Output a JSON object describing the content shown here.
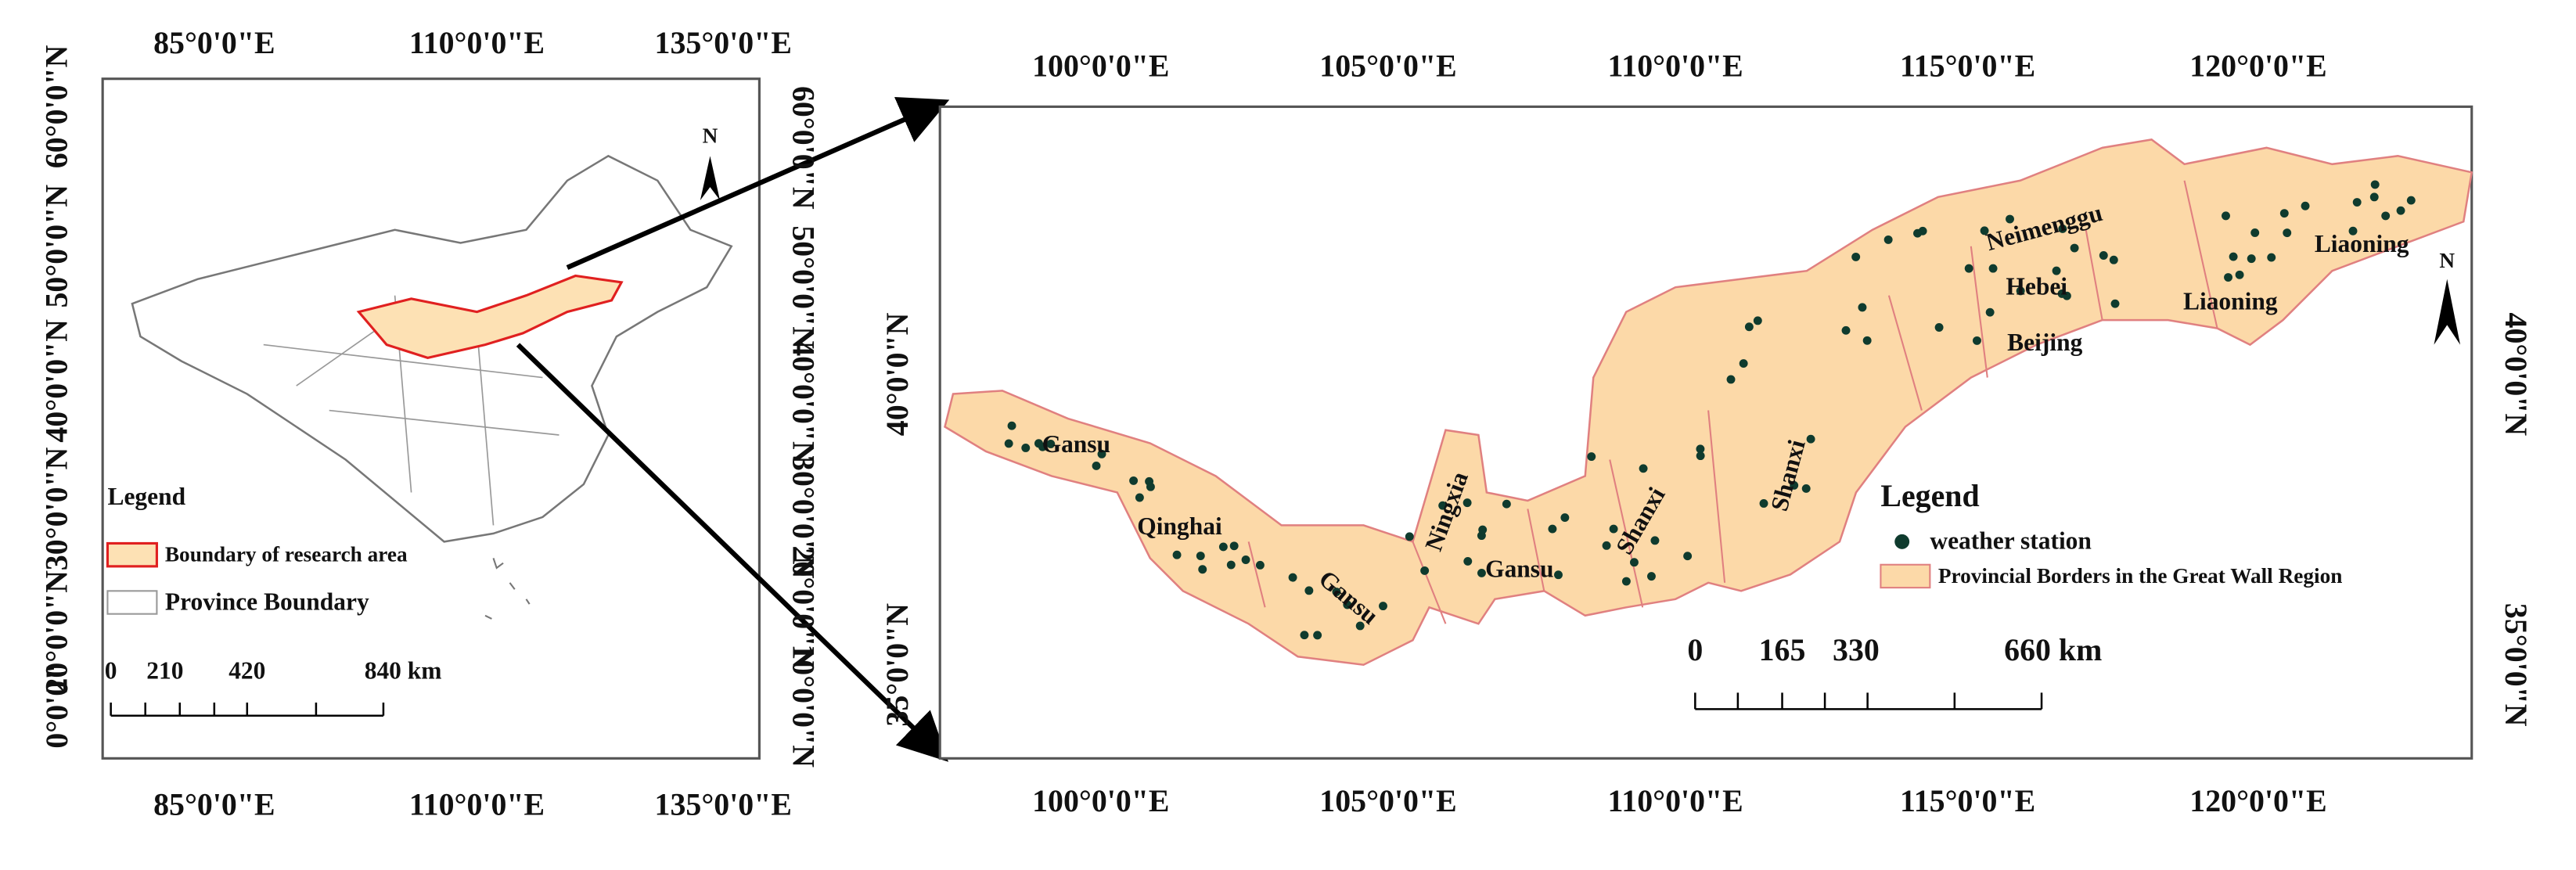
{
  "overview_map": {
    "top_labels": [
      "85°0'0\"E",
      "110°0'0\"E",
      "135°0'0\"E"
    ],
    "bottom_labels": [
      "85°0'0\"E",
      "110°0'0\"E",
      "135°0'0\"E"
    ],
    "left_labels": [
      "60°0'0\"N",
      "50°0'0\"N",
      "40°0'0\"N",
      "30°0'0\"N",
      "20°0'0\"N",
      "10°0'0\"N",
      "0°0'0\""
    ],
    "right_labels": [
      "60°0'0\"N",
      "50°0'0\"N",
      "40°0'0\"N",
      "30°0'0\"N",
      "20°0'0\"N",
      "10°0'0\"N"
    ],
    "north": "N",
    "legend": {
      "title": "Legend",
      "items": [
        "Boundary of research area",
        "Province Boundary"
      ]
    },
    "scale_bar": [
      "0",
      "210",
      "420",
      "840 km"
    ]
  },
  "detail_map": {
    "top_labels": [
      "100°0'0\"E",
      "105°0'0\"E",
      "110°0'0\"E",
      "115°0'0\"E",
      "120°0'0\"E"
    ],
    "bottom_labels": [
      "100°0'0\"E",
      "105°0'0\"E",
      "110°0'0\"E",
      "115°0'0\"E",
      "120°0'0\"E"
    ],
    "left_labels": [
      "40°0'0\"N",
      "35°0'0\"N"
    ],
    "right_labels": [
      "40°0'0\"N",
      "35°0'0\"N"
    ],
    "north": "N",
    "provinces": [
      "Gansu",
      "Qinghai",
      "Gansu",
      "Ningxia",
      "Gansu",
      "Shanxi",
      "Shanxi",
      "Neimenggu",
      "Hebei",
      "Beijing",
      "Liaoning",
      "Liaoning"
    ],
    "legend": {
      "title": "Legend",
      "items": [
        "weather station",
        "Provincial Borders in the Great Wall Region"
      ]
    },
    "scale_bar": [
      "0",
      "165",
      "330",
      "660 km"
    ]
  }
}
